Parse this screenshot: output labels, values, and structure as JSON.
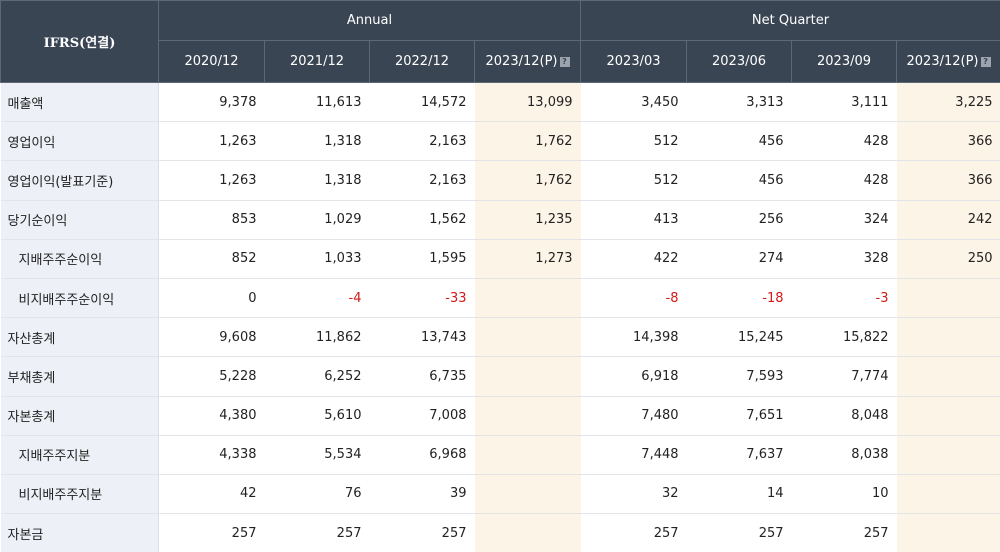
{
  "header": {
    "label": "IFRS(연결)",
    "group_annual": "Annual",
    "group_quarter": "Net Quarter",
    "periods": [
      "2020/12",
      "2021/12",
      "2022/12",
      "2023/12(P)",
      "2023/03",
      "2023/06",
      "2023/09",
      "2023/12(P)"
    ],
    "info_icon": "?"
  },
  "rows": [
    {
      "label": "매출액",
      "values": [
        "9,378",
        "11,613",
        "14,572",
        "13,099",
        "3,450",
        "3,313",
        "3,111",
        "3,225"
      ]
    },
    {
      "label": "영업이익",
      "values": [
        "1,263",
        "1,318",
        "2,163",
        "1,762",
        "512",
        "456",
        "428",
        "366"
      ]
    },
    {
      "label": "영업이익(발표기준)",
      "values": [
        "1,263",
        "1,318",
        "2,163",
        "1,762",
        "512",
        "456",
        "428",
        "366"
      ]
    },
    {
      "label": "당기순이익",
      "values": [
        "853",
        "1,029",
        "1,562",
        "1,235",
        "413",
        "256",
        "324",
        "242"
      ]
    },
    {
      "label": "지배주주순이익",
      "values": [
        "852",
        "1,033",
        "1,595",
        "1,273",
        "422",
        "274",
        "328",
        "250"
      ]
    },
    {
      "label": "비지배주주순이익",
      "values": [
        "0",
        "-4",
        "-33",
        "",
        "-8",
        "-18",
        "-3",
        ""
      ]
    },
    {
      "label": "자산총계",
      "values": [
        "9,608",
        "11,862",
        "13,743",
        "",
        "14,398",
        "15,245",
        "15,822",
        ""
      ]
    },
    {
      "label": "부채총계",
      "values": [
        "5,228",
        "6,252",
        "6,735",
        "",
        "6,918",
        "7,593",
        "7,774",
        ""
      ]
    },
    {
      "label": "자본총계",
      "values": [
        "4,380",
        "5,610",
        "7,008",
        "",
        "7,480",
        "7,651",
        "8,048",
        ""
      ]
    },
    {
      "label": "지배주주지분",
      "values": [
        "4,338",
        "5,534",
        "6,968",
        "",
        "7,448",
        "7,637",
        "8,038",
        ""
      ]
    },
    {
      "label": "비지배주주지분",
      "values": [
        "42",
        "76",
        "39",
        "",
        "32",
        "14",
        "10",
        ""
      ]
    },
    {
      "label": "자본금",
      "values": [
        "257",
        "257",
        "257",
        "",
        "257",
        "257",
        "257",
        ""
      ]
    }
  ],
  "colors": {
    "header_bg": "#3a4554",
    "label_bg": "#edf0f6",
    "estimate_bg": "#fdf4e8",
    "negative_text": "#d11a1a"
  }
}
